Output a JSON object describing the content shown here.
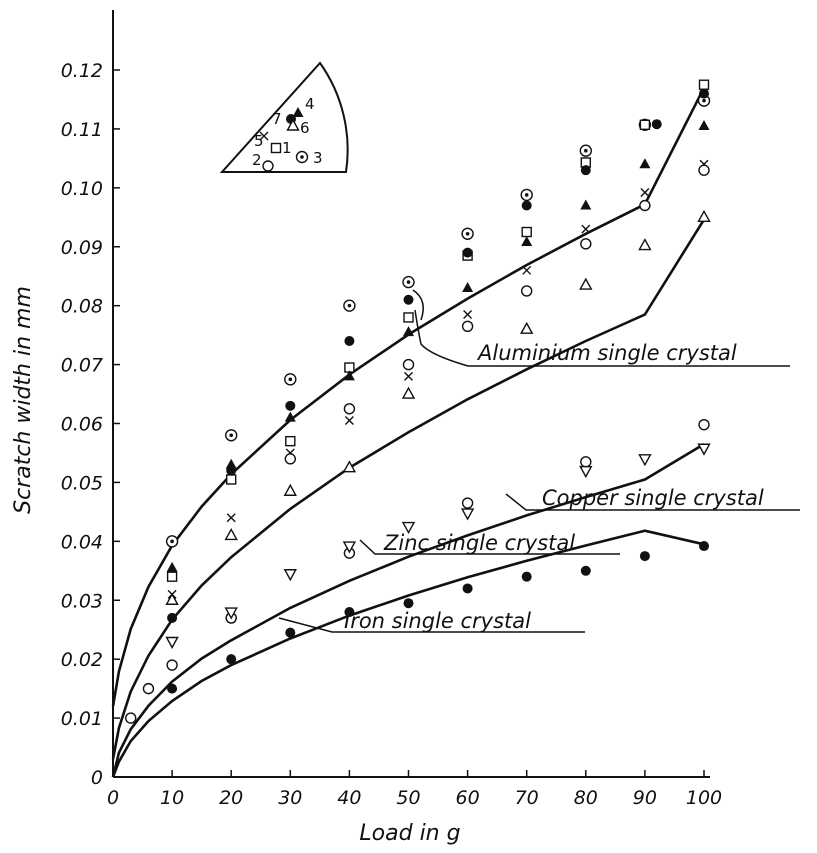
{
  "chart_data": {
    "type": "scatter",
    "xlabel": "Load in g",
    "ylabel": "Scratch width in mm",
    "xlim": [
      0,
      100
    ],
    "ylim": [
      0,
      0.12
    ],
    "x_ticks": [
      "0",
      "10",
      "20",
      "30",
      "40",
      "50",
      "60",
      "70",
      "80",
      "90",
      "100"
    ],
    "y_ticks": [
      "0",
      "0.01",
      "0.02",
      "0.03",
      "0.04",
      "0.05",
      "0.06",
      "0.07",
      "0.08",
      "0.09",
      "0.10",
      "0.11",
      "0.12"
    ],
    "grid": false,
    "annotations": [
      "Aluminium single crystal",
      "Copper single crystal",
      "Zinc single crystal",
      "Iron single crystal"
    ],
    "orientation_key_labels": [
      "1",
      "2",
      "3",
      "4",
      "5",
      "6",
      "7"
    ],
    "series": [
      {
        "marker": "circle-dot",
        "group": "Aluminium",
        "x": [
          10,
          20,
          30,
          40,
          50,
          60,
          70,
          80,
          90,
          100
        ],
        "y": [
          0.04,
          0.058,
          0.0675,
          0.08,
          0.084,
          0.0922,
          0.0988,
          0.1063,
          0.1107,
          0.1148
        ]
      },
      {
        "marker": "square",
        "group": "Aluminium",
        "x": [
          10,
          20,
          30,
          40,
          50,
          60,
          70,
          80,
          90,
          100
        ],
        "y": [
          0.034,
          0.0505,
          0.057,
          0.0695,
          0.078,
          0.0885,
          0.0925,
          0.1043,
          0.1107,
          0.1175
        ]
      },
      {
        "marker": "filled-circle",
        "group": "Aluminium",
        "x": [
          10,
          20,
          30,
          40,
          50,
          60,
          70,
          80,
          92,
          100
        ],
        "y": [
          0.027,
          0.052,
          0.063,
          0.074,
          0.081,
          0.089,
          0.097,
          0.103,
          0.1108,
          0.116
        ]
      },
      {
        "marker": "filled-triangle",
        "group": "Aluminium",
        "x": [
          10,
          20,
          30,
          40,
          50,
          60,
          70,
          80,
          90,
          100
        ],
        "y": [
          0.0355,
          0.053,
          0.061,
          0.068,
          0.0755,
          0.083,
          0.0908,
          0.097,
          0.104,
          0.1105
        ]
      },
      {
        "marker": "cross",
        "group": "Aluminium",
        "x": [
          10,
          20,
          30,
          40,
          50,
          60,
          70,
          80,
          90,
          100
        ],
        "y": [
          0.031,
          0.044,
          0.055,
          0.0605,
          0.068,
          0.0785,
          0.086,
          0.093,
          0.0992,
          0.104
        ]
      },
      {
        "marker": "open-circle",
        "group": "Aluminium",
        "x": [
          3,
          6,
          10,
          20,
          30,
          40,
          50,
          60,
          70,
          80,
          90,
          100
        ],
        "y": [
          0.01,
          0.015,
          0.019,
          0.027,
          0.054,
          0.0625,
          0.07,
          0.0765,
          0.0825,
          0.0905,
          0.097,
          0.103
        ]
      },
      {
        "marker": "open-triangle",
        "group": "Aluminium",
        "x": [
          10,
          20,
          30,
          40,
          50,
          70,
          80,
          90,
          100
        ],
        "y": [
          0.03,
          0.041,
          0.0485,
          0.0525,
          0.065,
          0.076,
          0.0835,
          0.0902,
          0.095
        ]
      },
      {
        "marker": "open-circle",
        "group": "Copper",
        "x": [
          20,
          40,
          60,
          80,
          100
        ],
        "y": [
          0.027,
          0.038,
          0.0465,
          0.0535,
          0.0598
        ]
      },
      {
        "marker": "inverted-triangle",
        "group": "Zinc",
        "x": [
          10,
          20,
          30,
          40,
          50,
          60,
          80,
          90,
          100
        ],
        "y": [
          0.023,
          0.028,
          0.0345,
          0.0392,
          0.0425,
          0.0448,
          0.052,
          0.054,
          0.0558
        ]
      },
      {
        "marker": "filled-circle",
        "group": "Iron",
        "x": [
          10,
          20,
          30,
          40,
          50,
          60,
          70,
          80,
          90,
          100
        ],
        "y": [
          0.015,
          0.02,
          0.0245,
          0.028,
          0.0295,
          0.032,
          0.034,
          0.035,
          0.0375,
          0.0392
        ]
      }
    ],
    "curves": [
      {
        "group": "Aluminium upper",
        "x": [
          0,
          1,
          3,
          6,
          10,
          15,
          20,
          30,
          40,
          50,
          60,
          70,
          80,
          90,
          100
        ],
        "y": [
          0.012,
          0.0179,
          0.0251,
          0.0323,
          0.0393,
          0.0459,
          0.0514,
          0.0606,
          0.0683,
          0.0751,
          0.0812,
          0.0869,
          0.0922,
          0.0972,
          0.117
        ]
      },
      {
        "group": "Aluminium lower",
        "x": [
          0,
          1,
          3,
          6,
          10,
          15,
          20,
          30,
          40,
          50,
          60,
          70,
          80,
          90,
          100
        ],
        "y": [
          0.003,
          0.0083,
          0.0145,
          0.0206,
          0.0267,
          0.0325,
          0.0373,
          0.0455,
          0.0525,
          0.0585,
          0.0641,
          0.0692,
          0.074,
          0.0785,
          0.0946
        ]
      },
      {
        "group": "Copper/Zinc",
        "x": [
          0,
          1,
          3,
          6,
          10,
          15,
          20,
          30,
          40,
          50,
          60,
          70,
          80,
          90,
          100
        ],
        "y": [
          0.0,
          0.0041,
          0.0081,
          0.0121,
          0.0162,
          0.0201,
          0.0232,
          0.0287,
          0.0333,
          0.0374,
          0.041,
          0.0444,
          0.0475,
          0.0505,
          0.0565
        ]
      },
      {
        "group": "Iron",
        "x": [
          0,
          1,
          3,
          6,
          10,
          15,
          20,
          30,
          40,
          50,
          60,
          70,
          80,
          90,
          100
        ],
        "y": [
          0.0,
          0.0026,
          0.0061,
          0.0095,
          0.0129,
          0.0163,
          0.019,
          0.0235,
          0.0274,
          0.0308,
          0.0339,
          0.0367,
          0.0393,
          0.0418,
          0.0395
        ]
      }
    ]
  }
}
